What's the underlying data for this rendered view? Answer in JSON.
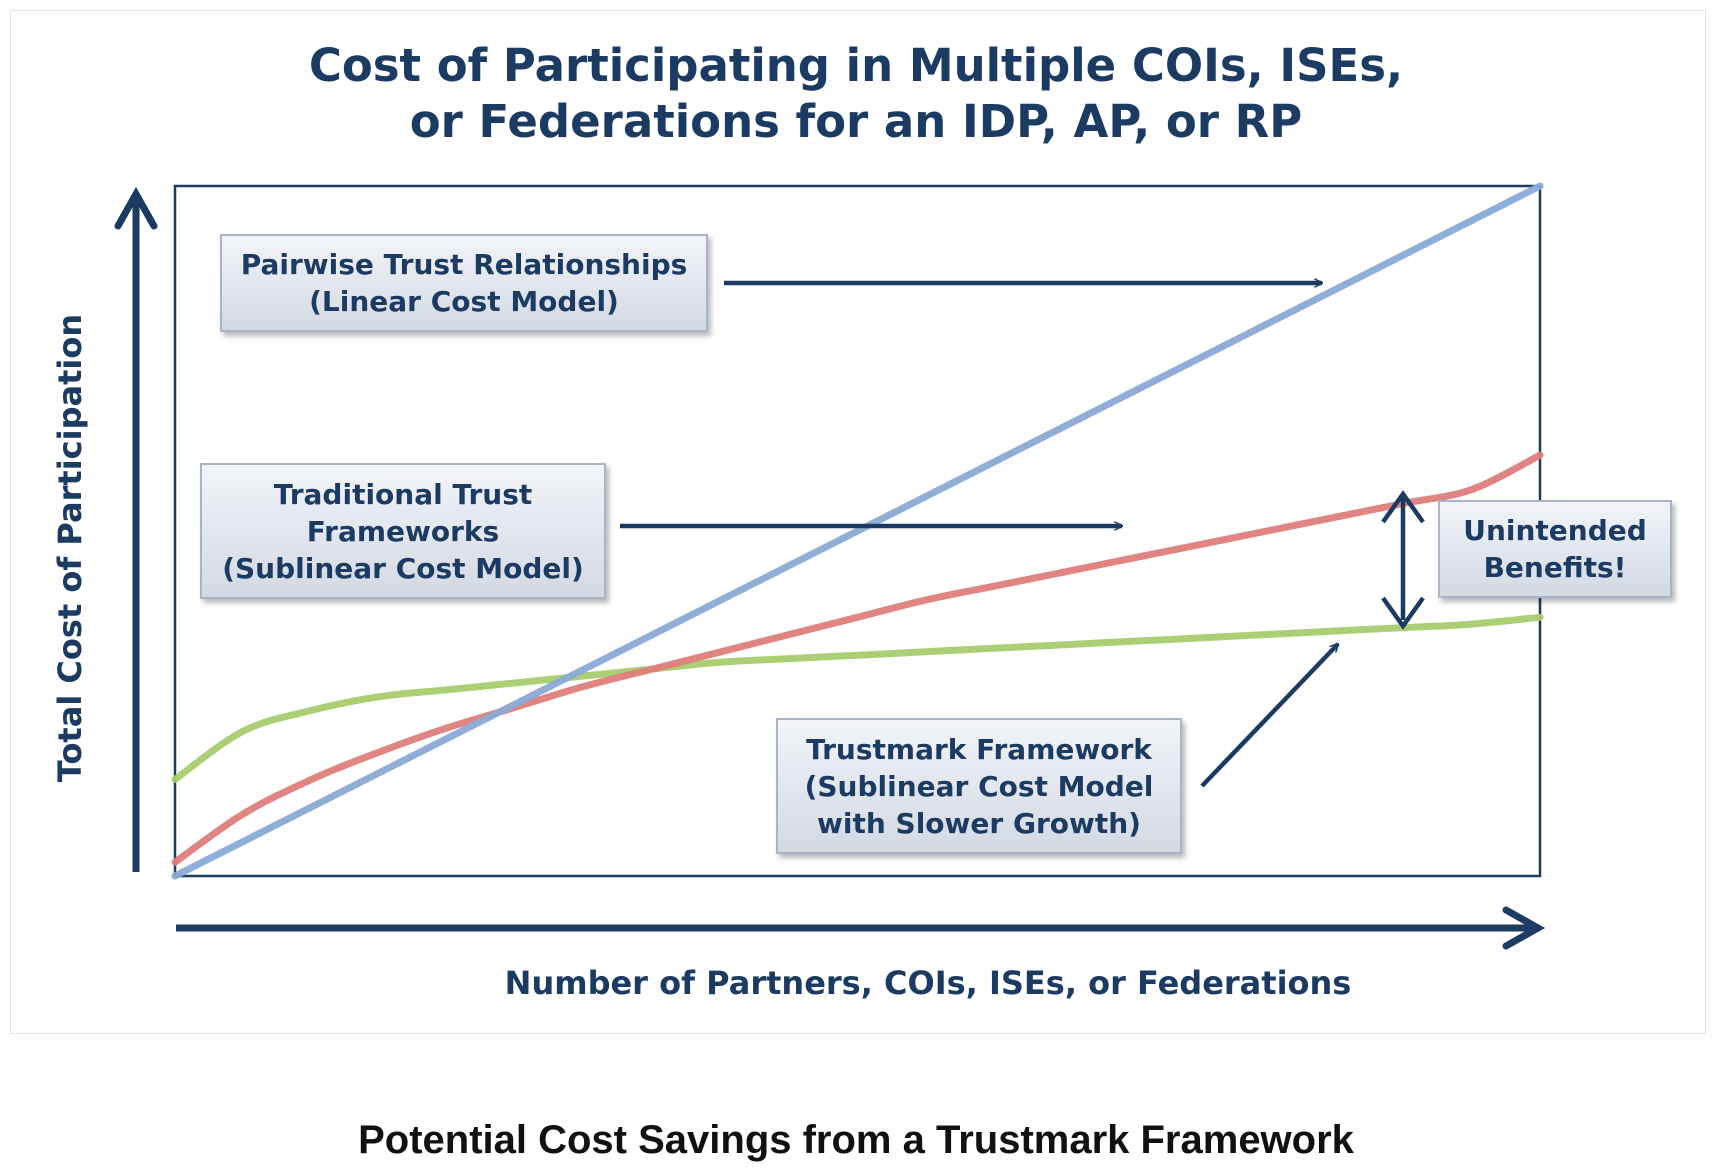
{
  "chart_data": {
    "type": "line",
    "title": [
      "Cost of Participating in Multiple COIs, ISEs,",
      "or Federations for an IDP, AP, or RP"
    ],
    "xlabel": "Number of Partners, COIs, ISEs, or Federations",
    "ylabel": "Total Cost of Participation",
    "xlim": [
      0,
      1
    ],
    "ylim": [
      0,
      1
    ],
    "grid": false,
    "x": [
      0,
      0.05,
      0.1,
      0.15,
      0.2,
      0.25,
      0.3,
      0.35,
      0.4,
      0.45,
      0.5,
      0.55,
      0.6,
      0.65,
      0.7,
      0.75,
      0.8,
      0.85,
      0.9,
      0.95,
      1
    ],
    "series": [
      {
        "key": "pairwise",
        "color": "#8aaad6",
        "values": [
          0.0,
          0.05,
          0.1,
          0.15,
          0.2,
          0.25,
          0.3,
          0.35,
          0.4,
          0.45,
          0.5,
          0.55,
          0.6,
          0.65,
          0.7,
          0.75,
          0.8,
          0.85,
          0.9,
          0.95,
          1.0
        ]
      },
      {
        "key": "traditional",
        "color": "#de7e7b",
        "values": [
          0.02,
          0.09,
          0.14,
          0.18,
          0.215,
          0.245,
          0.275,
          0.3,
          0.325,
          0.35,
          0.375,
          0.4,
          0.42,
          0.44,
          0.46,
          0.48,
          0.5,
          0.52,
          0.54,
          0.56,
          0.61
        ]
      },
      {
        "key": "trustmark",
        "color": "#a8cc6e",
        "values": [
          0.14,
          0.21,
          0.24,
          0.26,
          0.27,
          0.28,
          0.29,
          0.3,
          0.31,
          0.315,
          0.32,
          0.325,
          0.33,
          0.335,
          0.34,
          0.345,
          0.35,
          0.355,
          0.36,
          0.365,
          0.375
        ]
      }
    ],
    "annotations": [
      {
        "key": "pairwise",
        "lines": [
          "Pairwise Trust Relationships",
          "(Linear Cost Model)"
        ]
      },
      {
        "key": "traditional",
        "lines": [
          "Traditional Trust",
          "Frameworks",
          "(Sublinear Cost Model)"
        ]
      },
      {
        "key": "trustmark",
        "lines": [
          "Trustmark Framework",
          "(Sublinear Cost Model",
          "with Slower Growth)"
        ]
      },
      {
        "key": "benefits",
        "lines": [
          "Unintended",
          "Benefits!"
        ]
      }
    ],
    "caption": "Potential Cost Savings from a Trustmark Framework"
  }
}
